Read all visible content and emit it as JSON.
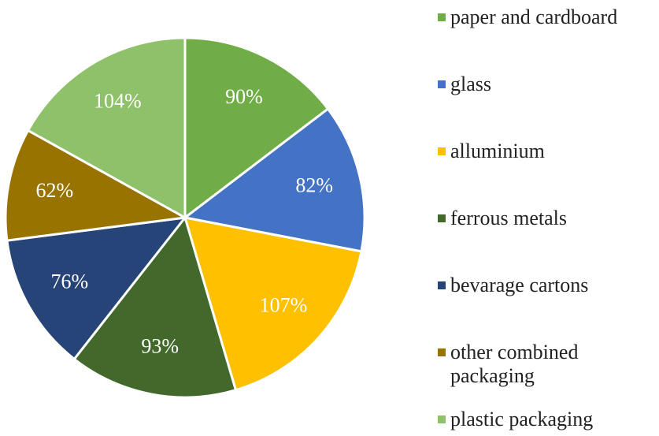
{
  "chart_data": {
    "type": "pie",
    "categories": [
      "paper and cardboard",
      "glass",
      "alluminium",
      "ferrous metals",
      "bevarage cartons",
      "other combined packaging",
      "plastic packaging"
    ],
    "values": [
      90,
      82,
      107,
      93,
      76,
      62,
      104
    ],
    "value_labels": [
      "90%",
      "82%",
      "107%",
      "93%",
      "76%",
      "62%",
      "104%"
    ],
    "colors": [
      "#70ad47",
      "#4472c4",
      "#ffc000",
      "#43682b",
      "#264478",
      "#997300",
      "#8ec16a"
    ],
    "legend": "right"
  }
}
